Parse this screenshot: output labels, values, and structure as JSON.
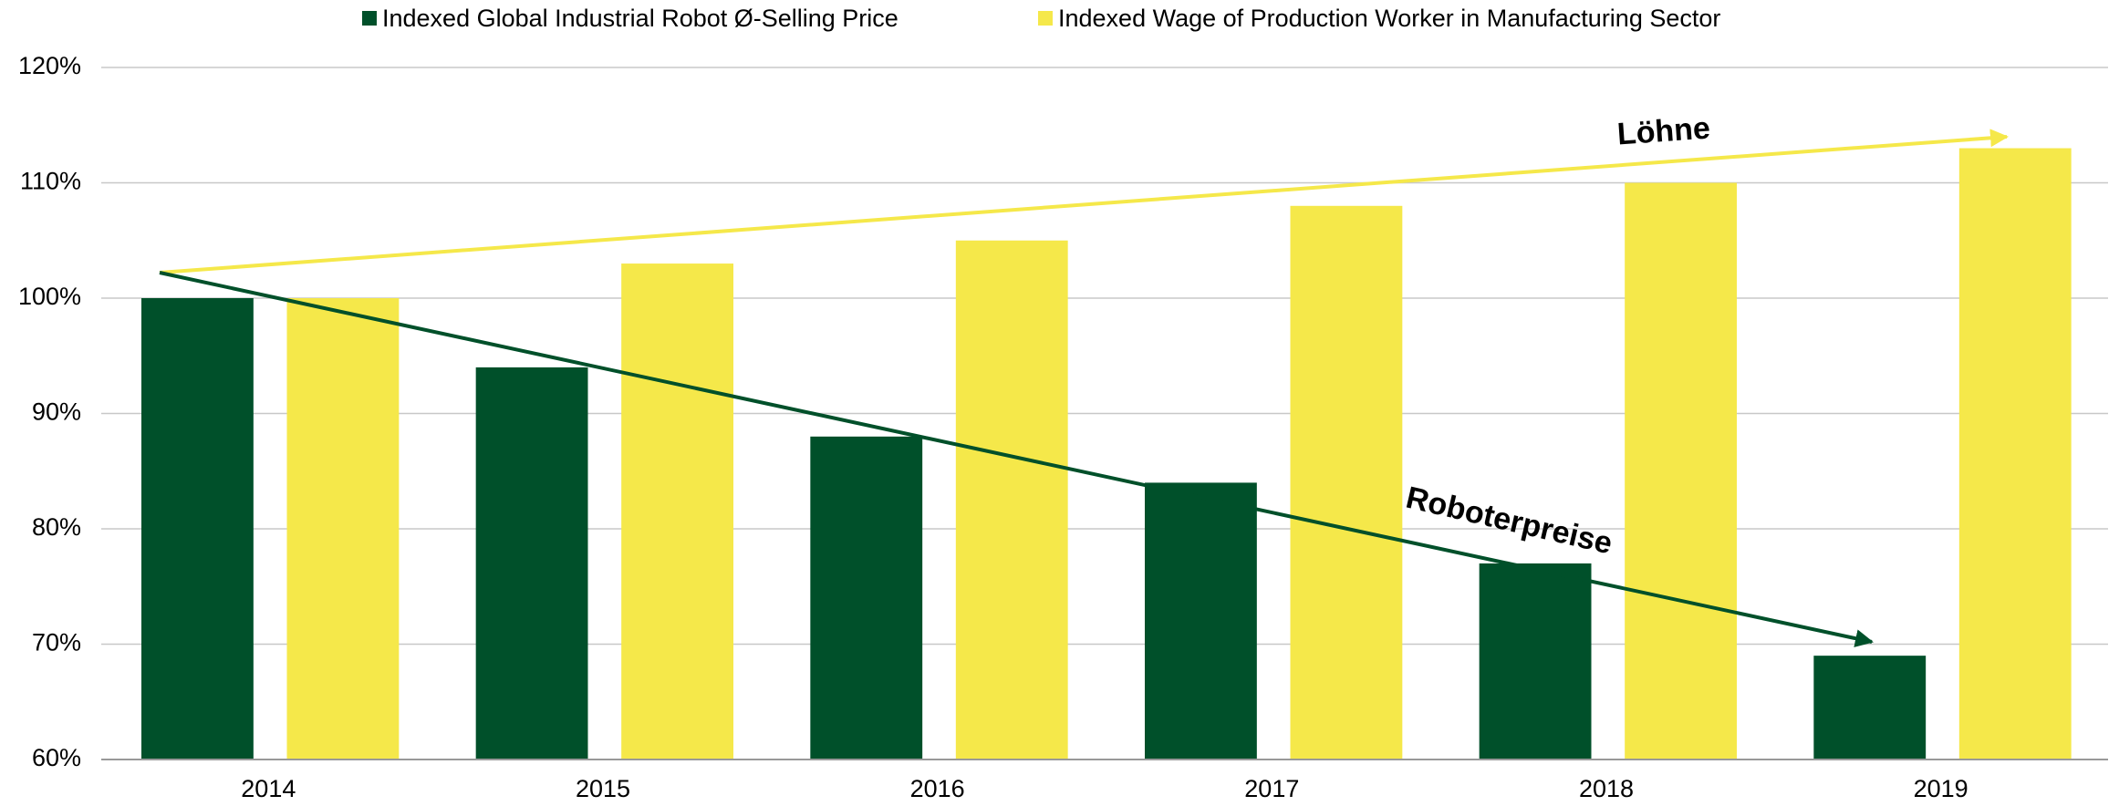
{
  "chart_data": {
    "type": "bar",
    "categories": [
      "2014",
      "2015",
      "2016",
      "2017",
      "2018",
      "2019"
    ],
    "series": [
      {
        "name": "Indexed Global Industrial Robot Ø-Selling Price",
        "color": "#00502a",
        "values": [
          100,
          94,
          88,
          84,
          77,
          69
        ]
      },
      {
        "name": "Indexed Wage of Production Worker in Manufacturing Sector",
        "color": "#f5e84a",
        "values": [
          100,
          103,
          105,
          108,
          110,
          113
        ]
      }
    ],
    "ylim": [
      60,
      120
    ],
    "yticks": [
      {
        "value": 60,
        "label": "60%"
      },
      {
        "value": 70,
        "label": "70%"
      },
      {
        "value": 80,
        "label": "80%"
      },
      {
        "value": 90,
        "label": "90%"
      },
      {
        "value": 100,
        "label": "100%"
      },
      {
        "value": 110,
        "label": "110%"
      },
      {
        "value": 120,
        "label": "120%"
      }
    ],
    "grid": true,
    "legend": "top",
    "annotations": [
      "Löhne",
      "Roboterpreise"
    ]
  }
}
